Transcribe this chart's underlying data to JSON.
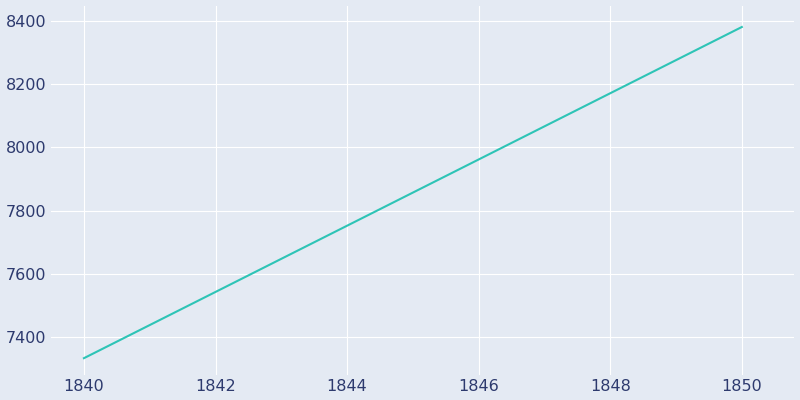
{
  "x": [
    1840,
    1850
  ],
  "y": [
    7332,
    8382
  ],
  "line_color": "#2ec4b6",
  "line_width": 1.5,
  "background_color": "#e4eaf3",
  "grid_color": "#ffffff",
  "tick_color": "#2d3a6e",
  "xlim": [
    1839.5,
    1850.8
  ],
  "ylim": [
    7280,
    8450
  ],
  "xticks": [
    1840,
    1842,
    1844,
    1846,
    1848,
    1850
  ],
  "yticks": [
    7400,
    7600,
    7800,
    8000,
    8200,
    8400
  ],
  "tick_fontsize": 11.5
}
